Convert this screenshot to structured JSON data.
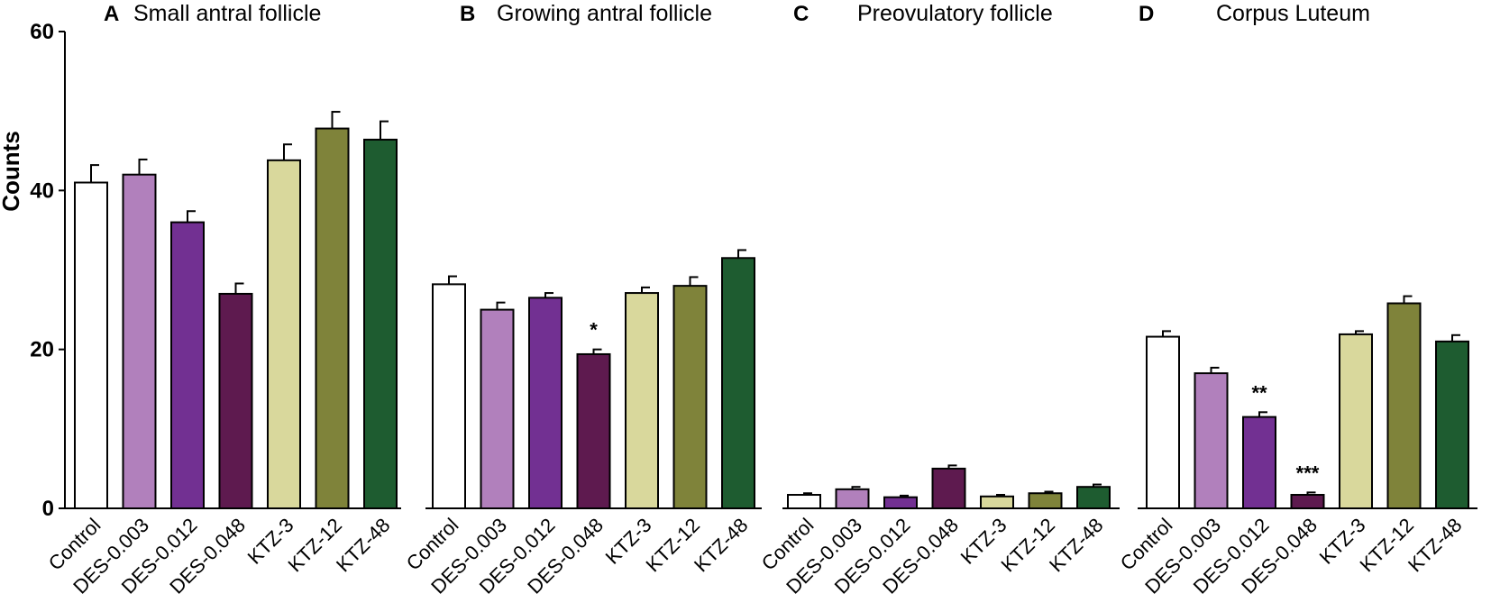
{
  "chart_data": {
    "type": "bar",
    "ylabel": "Counts",
    "ylim": [
      0,
      60
    ],
    "yticks": [
      0,
      20,
      40,
      60
    ],
    "categories": [
      "Control",
      "DES-0.003",
      "DES-0.012",
      "DES-0.048",
      "KTZ-3",
      "KTZ-12",
      "KTZ-48"
    ],
    "category_colors": [
      "#ffffff",
      "#b180bc",
      "#723092",
      "#5e1a4f",
      "#d9d89c",
      "#7f833a",
      "#1e5c30"
    ],
    "panels": [
      {
        "letter": "A",
        "title": "Small antral follicle",
        "values": [
          41,
          42,
          36,
          27,
          43.8,
          47.8,
          46.4
        ],
        "errors": [
          2.2,
          1.9,
          1.4,
          1.3,
          2.0,
          2.1,
          2.3
        ],
        "significance": [
          "",
          "",
          "",
          "",
          "",
          "",
          ""
        ]
      },
      {
        "letter": "B",
        "title": "Growing antral follicle",
        "values": [
          28.2,
          25,
          26.5,
          19.4,
          27.1,
          28,
          31.5
        ],
        "errors": [
          1.0,
          0.9,
          0.6,
          0.6,
          0.7,
          1.1,
          1.0
        ],
        "significance": [
          "",
          "",
          "",
          "*",
          "",
          "",
          ""
        ]
      },
      {
        "letter": "C",
        "title": "Preovulatory follicle",
        "values": [
          1.7,
          2.4,
          1.4,
          5,
          1.5,
          1.9,
          2.7
        ],
        "errors": [
          0.2,
          0.3,
          0.2,
          0.4,
          0.2,
          0.2,
          0.3
        ],
        "significance": [
          "",
          "",
          "",
          "",
          "",
          "",
          ""
        ]
      },
      {
        "letter": "D",
        "title": "Corpus Luteum",
        "values": [
          21.6,
          17,
          11.5,
          1.7,
          21.9,
          25.8,
          21
        ],
        "errors": [
          0.7,
          0.7,
          0.6,
          0.3,
          0.4,
          0.9,
          0.8
        ],
        "significance": [
          "",
          "",
          "**",
          "***",
          "",
          "",
          ""
        ]
      }
    ]
  }
}
